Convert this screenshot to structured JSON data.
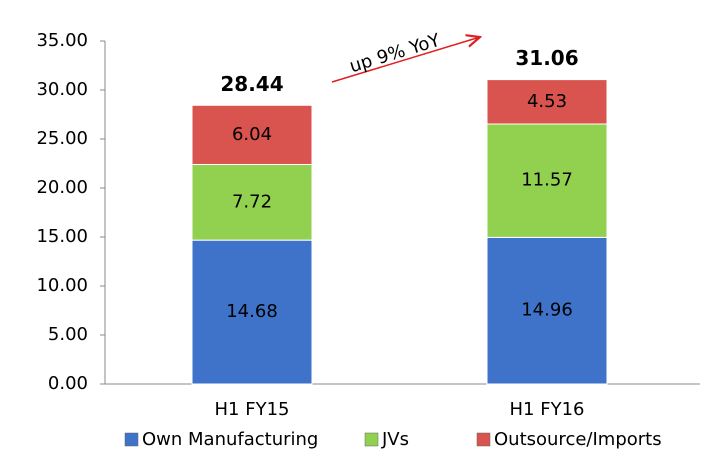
{
  "chart_data": {
    "type": "stacked_bar",
    "categories": [
      "H1 FY15",
      "H1 FY16"
    ],
    "series": [
      {
        "name": "Own Manufacturing",
        "color": "#3f73c9",
        "values": [
          14.68,
          14.96
        ]
      },
      {
        "name": "JVs",
        "color": "#92d050",
        "values": [
          7.72,
          11.57
        ]
      },
      {
        "name": "Outsource/Imports",
        "color": "#d9534f",
        "values": [
          6.04,
          4.53
        ]
      }
    ],
    "totals": [
      28.44,
      31.06
    ],
    "annotation": "up 9% YoY",
    "ylim": [
      0,
      35
    ],
    "yticks": [
      {
        "value": 0,
        "label": "0.00"
      },
      {
        "value": 5,
        "label": "5.00"
      },
      {
        "value": 10,
        "label": "10.00"
      },
      {
        "value": 15,
        "label": "15.00"
      },
      {
        "value": 20,
        "label": "20.00"
      },
      {
        "value": 25,
        "label": "25.00"
      },
      {
        "value": 30,
        "label": "30.00"
      },
      {
        "value": 35,
        "label": "35.00"
      }
    ],
    "legend": "bottom"
  }
}
